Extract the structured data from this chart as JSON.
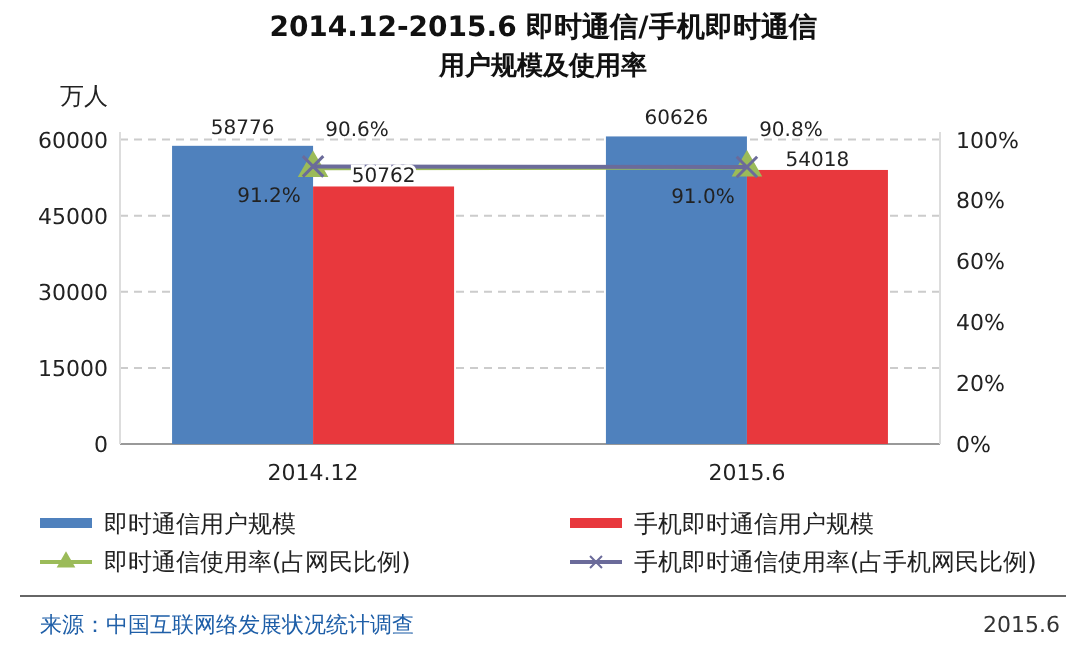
{
  "chart_data": {
    "type": "bar",
    "title": "2014.12-2015.6 即时通信/手机即时通信",
    "subtitle": "用户规模及使用率",
    "ylabel": "万人",
    "categories": [
      "2014.12",
      "2015.6"
    ],
    "series": [
      {
        "name": "即时通信用户规模",
        "color": "#4f81bd",
        "values": [
          58776,
          60626
        ]
      },
      {
        "name": "手机即时通信用户规模",
        "color": "#e8383d",
        "values": [
          50762,
          54018
        ]
      },
      {
        "name": "即时通信使用率(占网民比例)",
        "type": "line",
        "axis": "y2",
        "color": "#9bbb59",
        "marker": "triangle",
        "values": [
          90.6,
          90.8
        ],
        "value_labels": [
          "90.6%",
          "90.8%"
        ]
      },
      {
        "name": "手机即时通信使用率(占手机网民比例)",
        "type": "line",
        "axis": "y2",
        "color": "#6b6b9a",
        "marker": "cross",
        "values": [
          91.2,
          91.0
        ],
        "value_labels": [
          "91.2%",
          "91.0%"
        ]
      }
    ],
    "data_labels": true,
    "ylim": [
      0,
      61500
    ],
    "yticks": [
      0,
      15000,
      30000,
      45000,
      60000
    ],
    "y2lim": [
      0,
      102.5
    ],
    "y2ticks": [
      {
        "value": 0,
        "label": "0%"
      },
      {
        "value": 20,
        "label": "20%"
      },
      {
        "value": 40,
        "label": "40%"
      },
      {
        "value": 60,
        "label": "60%"
      },
      {
        "value": 80,
        "label": "80%"
      },
      {
        "value": 100,
        "label": "100%"
      }
    ],
    "grid": "y",
    "legend": "bottom",
    "annotations": [
      "来源：中国互联网络发展状况统计调查",
      "2015.6"
    ]
  }
}
